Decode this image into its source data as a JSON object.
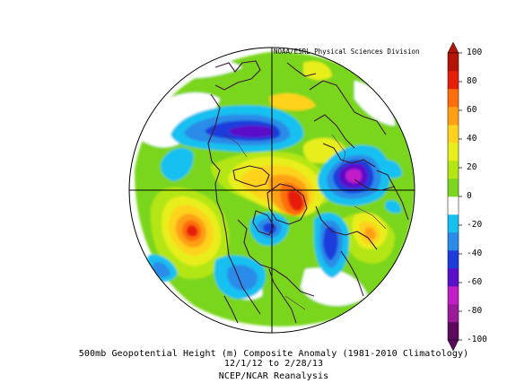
{
  "credit": "NOAA/ESRL Physical Sciences Division",
  "caption": {
    "line1": "500mb Geopotential Height (m) Composite Anomaly (1981-2010 Climatology)",
    "line2": "12/1/12  to 2/28/13",
    "line3": "NCEP/NCAR Reanalysis"
  },
  "colorbar": {
    "labels": [
      "100",
      "80",
      "60",
      "40",
      "20",
      "0",
      "-20",
      "-40",
      "-60",
      "-80",
      "-100"
    ],
    "colors": [
      "#5b0a5e",
      "#9a1a9a",
      "#c21ec8",
      "#5a10c8",
      "#1e3cdc",
      "#2a8ce8",
      "#16c0f0",
      "#ffffff",
      "#7ad61e",
      "#b4e614",
      "#e8ee1c",
      "#ffd21e",
      "#ffa014",
      "#ff6e0a",
      "#e61e0a",
      "#b41408"
    ]
  },
  "map": {
    "projection": "north-polar-stereographic",
    "variable": "500mb geopotential height anomaly",
    "units": "m"
  }
}
